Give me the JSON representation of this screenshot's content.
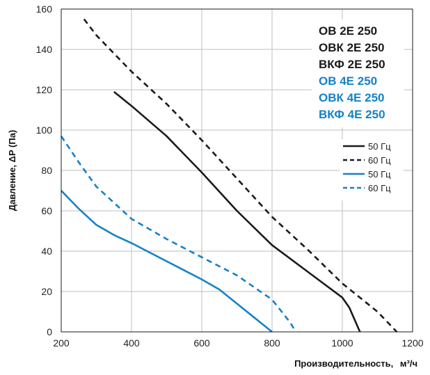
{
  "chart_data": {
    "type": "line",
    "xlabel": "Производительность,",
    "xunit": "м³/ч",
    "ylabel": "Давление, ΔP (Па)",
    "xlim": [
      200,
      1200
    ],
    "ylim": [
      0,
      160
    ],
    "xticks": [
      200,
      400,
      600,
      800,
      1000,
      1200
    ],
    "yticks": [
      0,
      20,
      40,
      60,
      80,
      100,
      120,
      140,
      160
    ],
    "grid": true,
    "colors": {
      "black": "#1a1a1a",
      "blue": "#1582c5",
      "grid": "#bfbfbf"
    },
    "models_black": [
      "ОВ 2Е 250",
      "ОВК 2Е 250",
      "ВКФ 2Е 250"
    ],
    "models_blue": [
      "ОВ 4Е 250",
      "ОВК 4Е 250",
      "ВКФ 4Е 250"
    ],
    "series": [
      {
        "name": "50 Гц",
        "group": "2E",
        "color": "#1a1a1a",
        "style": "solid",
        "x": [
          350,
          400,
          500,
          600,
          700,
          800,
          900,
          1000,
          1020,
          1050
        ],
        "y": [
          119,
          112,
          97,
          79,
          60,
          43,
          30,
          17,
          12,
          0
        ]
      },
      {
        "name": "60 Гц",
        "group": "2E",
        "color": "#1a1a1a",
        "style": "dashed",
        "x": [
          265,
          300,
          400,
          500,
          600,
          700,
          800,
          900,
          1000,
          1100,
          1155
        ],
        "y": [
          155,
          147,
          129,
          113,
          95,
          76,
          57,
          41,
          24,
          10,
          0
        ]
      },
      {
        "name": "50 Гц",
        "group": "4E",
        "color": "#1582c5",
        "style": "solid",
        "x": [
          200,
          250,
          300,
          350,
          400,
          500,
          600,
          650,
          700,
          750,
          800
        ],
        "y": [
          70,
          61,
          53,
          48,
          44,
          35,
          26,
          21,
          14,
          7,
          0
        ]
      },
      {
        "name": "60 Гц",
        "group": "4E",
        "color": "#1582c5",
        "style": "dashed",
        "x": [
          200,
          250,
          300,
          350,
          400,
          450,
          500,
          600,
          700,
          800,
          850,
          868
        ],
        "y": [
          97,
          84,
          72,
          64,
          56,
          51,
          46,
          37,
          28,
          16,
          5,
          0
        ]
      }
    ]
  }
}
